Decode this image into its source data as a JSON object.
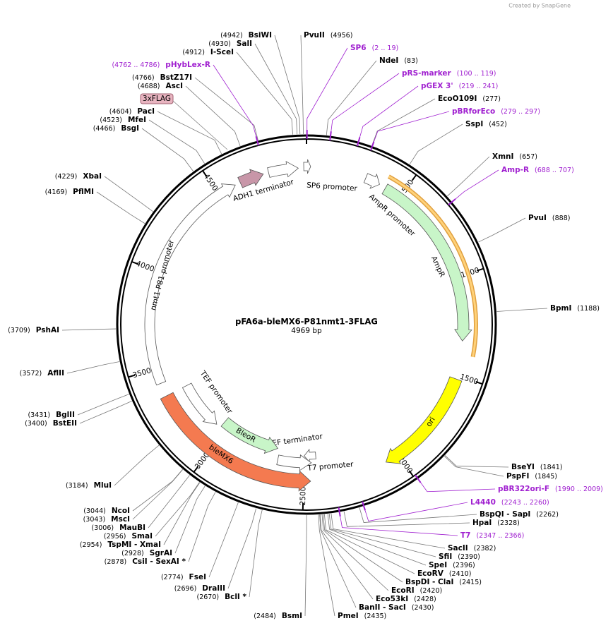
{
  "credit": "Created by SnapGene",
  "title": "pFA6a-bleMX6-P81nmt1-3FLAG",
  "length": "4969 bp",
  "ticks": [
    500,
    1000,
    1500,
    2000,
    2500,
    3000,
    3500,
    4000,
    4500
  ],
  "tag": "3xFLAG",
  "sites": [
    {
      "name": "BsiWI",
      "pos": "(4942)"
    },
    {
      "name": "SalI",
      "pos": "(4930)"
    },
    {
      "name": "I-SceI",
      "pos": "(4912)"
    },
    {
      "name": "BstZ17I",
      "pos": "(4766)"
    },
    {
      "name": "AscI",
      "pos": "(4688)"
    },
    {
      "name": "PacI",
      "pos": "(4604)"
    },
    {
      "name": "MfeI",
      "pos": "(4523)"
    },
    {
      "name": "BsgI",
      "pos": "(4466)"
    },
    {
      "name": "XbaI",
      "pos": "(4229)"
    },
    {
      "name": "PflMI",
      "pos": "(4169)"
    },
    {
      "name": "PshAI",
      "pos": "(3709)"
    },
    {
      "name": "AflII",
      "pos": "(3572)"
    },
    {
      "name": "BglII",
      "pos": "(3431)"
    },
    {
      "name": "BstEII",
      "pos": "(3400)"
    },
    {
      "name": "MluI",
      "pos": "(3184)"
    },
    {
      "name": "NcoI",
      "pos": "(3044)"
    },
    {
      "name": "MscI",
      "pos": "(3043)"
    },
    {
      "name": "MauBI",
      "pos": "(3006)"
    },
    {
      "name": "SmaI",
      "pos": "(2956)"
    },
    {
      "name": "TspMI - XmaI",
      "pos": "(2954)"
    },
    {
      "name": "SgrAI",
      "pos": "(2928)"
    },
    {
      "name": "CsiI - SexAI *",
      "pos": "(2878)"
    },
    {
      "name": "FseI",
      "pos": "(2774)"
    },
    {
      "name": "DraIII",
      "pos": "(2696)"
    },
    {
      "name": "BclI *",
      "pos": "(2670)"
    },
    {
      "name": "BsmI",
      "pos": "(2484)"
    },
    {
      "name": "PvuII",
      "pos": "(4956)"
    },
    {
      "name": "NdeI",
      "pos": "(83)"
    },
    {
      "name": "EcoO109I",
      "pos": "(277)"
    },
    {
      "name": "SspI",
      "pos": "(452)"
    },
    {
      "name": "XmnI",
      "pos": "(657)"
    },
    {
      "name": "PvuI",
      "pos": "(888)"
    },
    {
      "name": "BpmI",
      "pos": "(1188)"
    },
    {
      "name": "BseYI",
      "pos": "(1841)"
    },
    {
      "name": "PspFI",
      "pos": "(1845)"
    },
    {
      "name": "BspQI - SapI",
      "pos": "(2262)"
    },
    {
      "name": "HpaI",
      "pos": "(2328)"
    },
    {
      "name": "SacII",
      "pos": "(2382)"
    },
    {
      "name": "SfiI",
      "pos": "(2390)"
    },
    {
      "name": "SpeI",
      "pos": "(2396)"
    },
    {
      "name": "EcoRV",
      "pos": "(2410)"
    },
    {
      "name": "BspDI - ClaI",
      "pos": "(2415)"
    },
    {
      "name": "EcoRI",
      "pos": "(2420)"
    },
    {
      "name": "Eco53kI",
      "pos": "(2428)"
    },
    {
      "name": "BanII - SacI",
      "pos": "(2430)"
    },
    {
      "name": "PmeI",
      "pos": "(2435)"
    }
  ],
  "primers": [
    {
      "name": "pHybLex-R",
      "range": "(4762 .. 4786)"
    },
    {
      "name": "SP6",
      "range": "(2 .. 19)"
    },
    {
      "name": "pRS-marker",
      "range": "(100 .. 119)"
    },
    {
      "name": "pGEX 3'",
      "range": "(219 .. 241)"
    },
    {
      "name": "pBRforEco",
      "range": "(279 .. 297)"
    },
    {
      "name": "Amp-R",
      "range": "(688 .. 707)"
    },
    {
      "name": "pBR322ori-F",
      "range": "(1990 .. 2009)"
    },
    {
      "name": "L4440",
      "range": "(2243 .. 2260)"
    },
    {
      "name": "T7",
      "range": "(2347 .. 2366)"
    }
  ],
  "features": [
    {
      "name": "SP6 promoter"
    },
    {
      "name": "AmpR promoter"
    },
    {
      "name": "AmpR"
    },
    {
      "name": "ori"
    },
    {
      "name": "T7 promoter"
    },
    {
      "name": "TEF terminator"
    },
    {
      "name": "BleoR"
    },
    {
      "name": "TEF promoter"
    },
    {
      "name": "bleMX6"
    },
    {
      "name": "nmt1 P81 promoter"
    },
    {
      "name": "ADH1 terminator"
    }
  ]
}
